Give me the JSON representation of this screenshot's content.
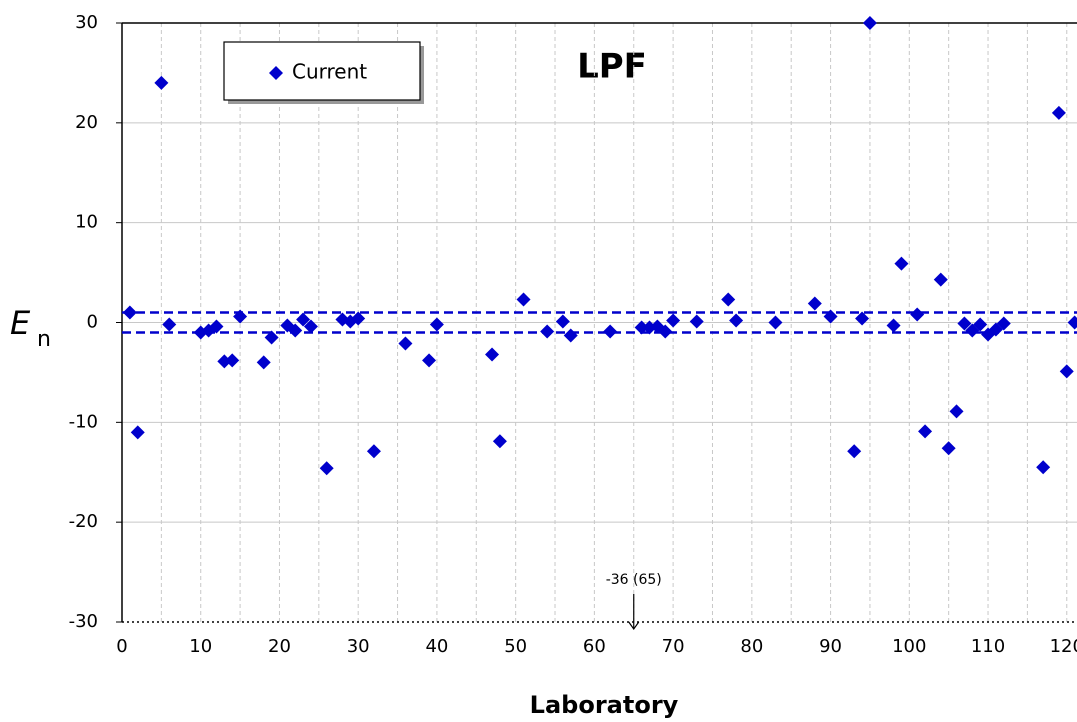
{
  "chart_data": {
    "type": "scatter",
    "title": "LPF",
    "x_label": "Laboratory",
    "y_label": {
      "main": "E",
      "sub": "n"
    },
    "series": [
      {
        "name": "Current",
        "color": "#0000cc",
        "x": [
          1,
          2,
          5,
          6,
          10,
          11,
          12,
          13,
          14,
          15,
          18,
          19,
          21,
          22,
          23,
          24,
          26,
          28,
          29,
          30,
          32,
          36,
          39,
          40,
          47,
          48,
          51,
          54,
          56,
          57,
          62,
          66,
          67,
          68,
          69,
          70,
          73,
          77,
          78,
          83,
          88,
          90,
          93,
          94,
          95,
          98,
          99,
          101,
          102,
          104,
          105,
          106,
          107,
          108,
          109,
          110,
          111,
          112,
          117,
          119,
          120,
          121
        ],
        "values": [
          1,
          -11,
          24,
          -0.2,
          -1,
          -0.8,
          -0.4,
          -3.9,
          -3.8,
          0.6,
          -4,
          -1.5,
          -0.3,
          -0.8,
          0.3,
          -0.4,
          -14.6,
          0.3,
          0.1,
          0.4,
          -12.9,
          -2.1,
          -3.8,
          -0.2,
          -3.2,
          -11.9,
          2.3,
          -0.9,
          0.1,
          -1.3,
          -0.9,
          -0.5,
          -0.5,
          -0.4,
          -0.9,
          0.2,
          0.1,
          2.3,
          0.2,
          0,
          1.9,
          0.6,
          -12.9,
          0.4,
          30,
          -0.3,
          5.9,
          0.8,
          -10.9,
          4.3,
          -12.6,
          -8.9,
          -0.1,
          -0.8,
          -0.2,
          -1.2,
          -0.7,
          -0.1,
          -14.5,
          21,
          -4.9,
          0
        ]
      }
    ],
    "reference_lines": [
      1,
      -1
    ],
    "reference_color": "#0000cc",
    "annotation": {
      "text": "-36 (65)",
      "x": 65
    },
    "xlim": [
      0,
      121.3
    ],
    "ylim": [
      -30,
      30
    ],
    "xticks": [
      0,
      10,
      20,
      30,
      40,
      50,
      60,
      70,
      80,
      90,
      100,
      110,
      120
    ],
    "yticks": [
      -30,
      -20,
      -10,
      0,
      10,
      20,
      30
    ],
    "grid": true,
    "legend": "upper left"
  }
}
